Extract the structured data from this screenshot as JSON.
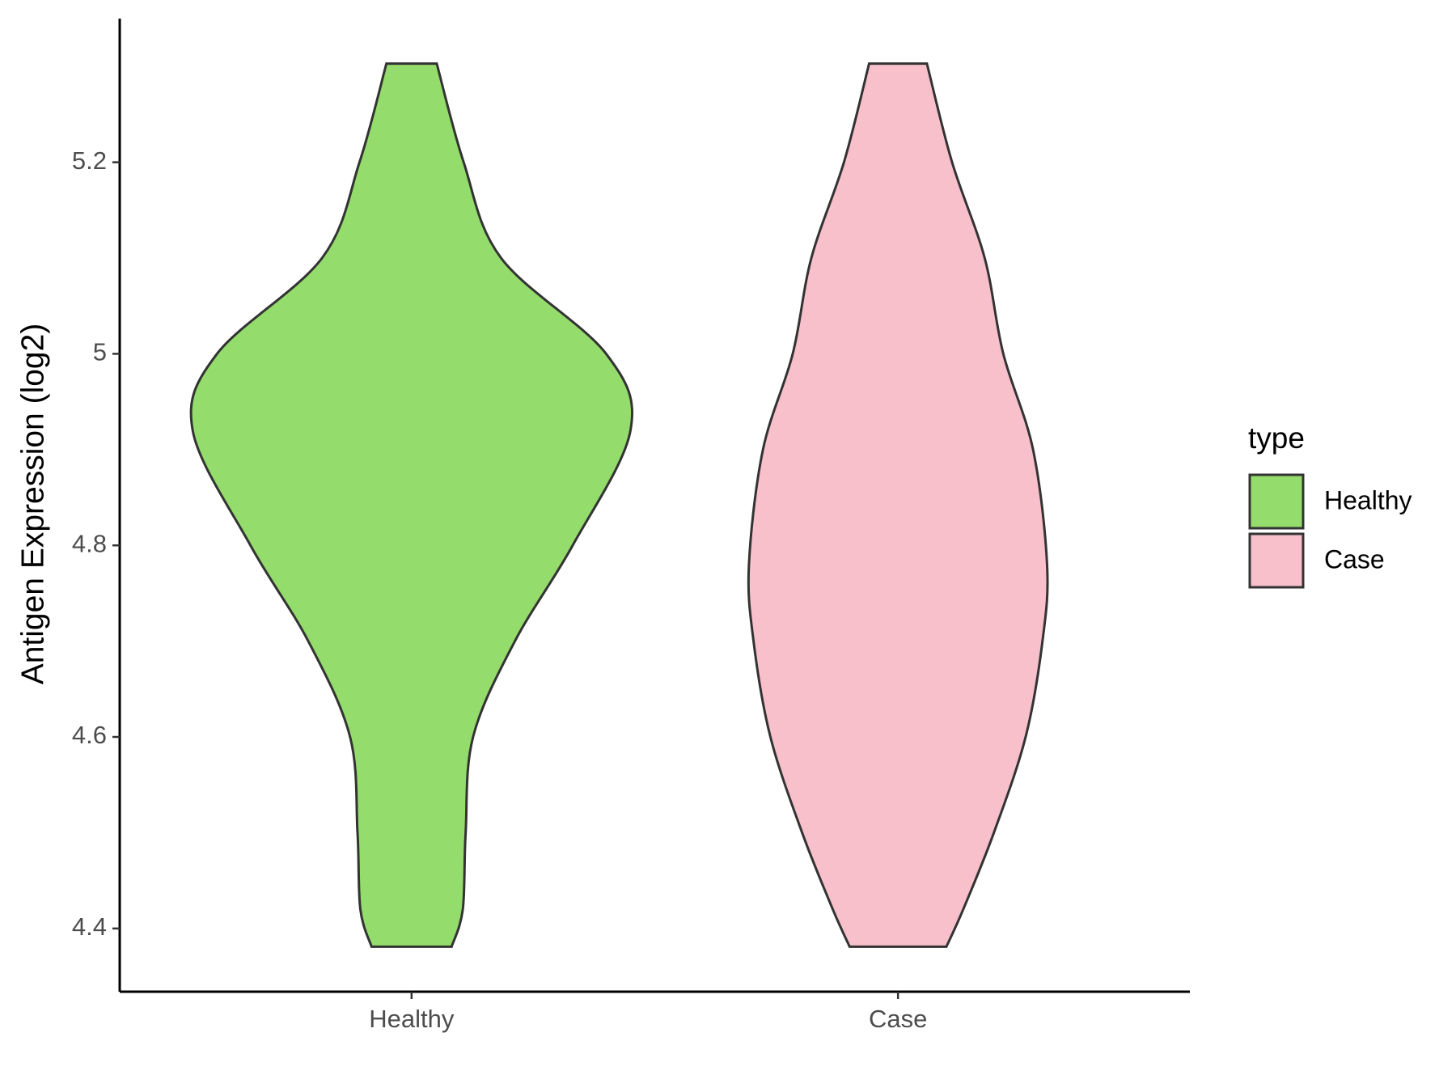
{
  "chart_data": {
    "type": "violin",
    "y_label": "Antigen Expression (log2)",
    "categories": [
      "Healthy",
      "Case"
    ],
    "legend_title": "type",
    "legend_position": "right",
    "ylim": [
      4.334,
      5.35
    ],
    "yticks": [
      4.4,
      4.6,
      4.8,
      5.0,
      5.2
    ],
    "series": [
      {
        "name": "Healthy",
        "color": "#94dc6b",
        "y": [
          5.303,
          5.2,
          5.1,
          5.0,
          4.92,
          4.8,
          4.7,
          4.6,
          4.5,
          4.42,
          4.381
        ],
        "density": [
          0.115,
          0.238,
          0.409,
          0.889,
          1.0,
          0.736,
          0.472,
          0.281,
          0.247,
          0.234,
          0.183
        ]
      },
      {
        "name": "Case",
        "color": "#f7c0cb",
        "y": [
          5.303,
          5.2,
          5.1,
          5.0,
          4.9,
          4.78,
          4.7,
          4.6,
          4.5,
          4.42,
          4.381
        ],
        "density": [
          0.132,
          0.247,
          0.396,
          0.481,
          0.617,
          0.681,
          0.66,
          0.583,
          0.438,
          0.298,
          0.221
        ]
      }
    ]
  }
}
